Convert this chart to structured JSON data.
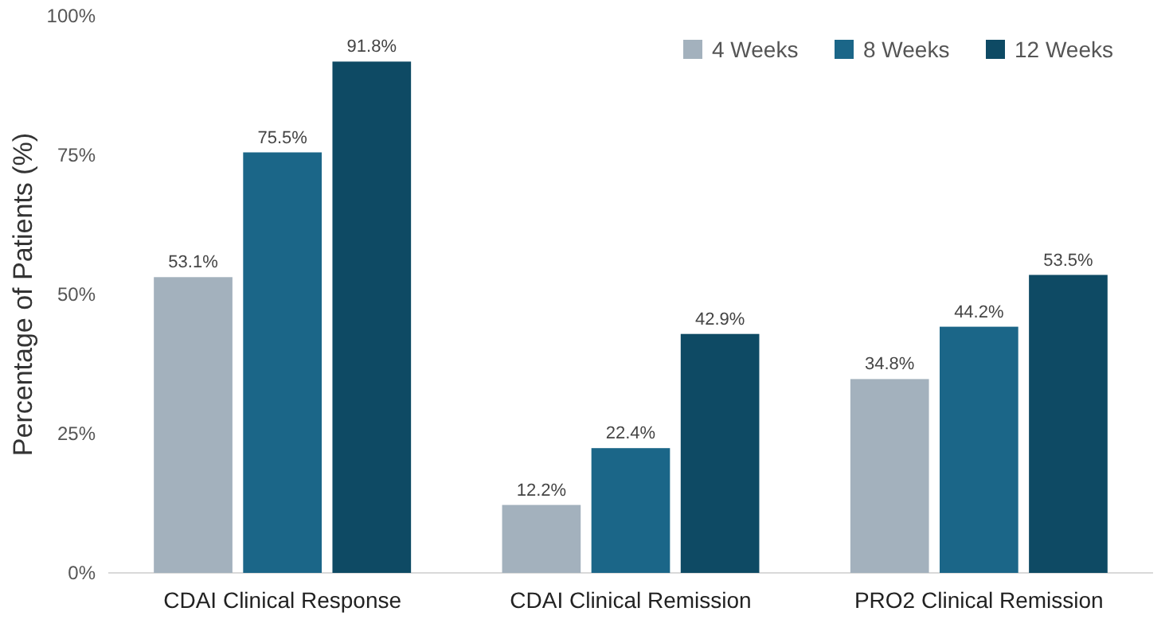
{
  "chart_data": {
    "type": "bar",
    "ylabel": "Percentage of Patients (%)",
    "categories": [
      "CDAI Clinical Response",
      "CDAI Clinical Remission",
      "PRO2 Clinical Remission"
    ],
    "series": [
      {
        "name": "4 Weeks",
        "color": "#a3b1bd",
        "values": [
          53.1,
          12.2,
          34.8
        ],
        "value_labels": [
          "53.1%",
          "12.2%",
          "34.8%"
        ]
      },
      {
        "name": "8 Weeks",
        "color": "#1b6688",
        "values": [
          75.5,
          22.4,
          44.2
        ],
        "value_labels": [
          "75.5%",
          "22.4%",
          "44.2%"
        ]
      },
      {
        "name": "12 Weeks",
        "color": "#0e4a64",
        "values": [
          91.8,
          42.9,
          53.5
        ],
        "value_labels": [
          "91.8%",
          "42.9%",
          "53.5%"
        ]
      }
    ],
    "ylim": [
      0,
      100
    ],
    "yticks": [
      {
        "value": 0,
        "label": "0%"
      },
      {
        "value": 25,
        "label": "25%"
      },
      {
        "value": 50,
        "label": "50%"
      },
      {
        "value": 75,
        "label": "75%"
      },
      {
        "value": 100,
        "label": "100%"
      }
    ],
    "grid": false,
    "legend": "top right"
  }
}
